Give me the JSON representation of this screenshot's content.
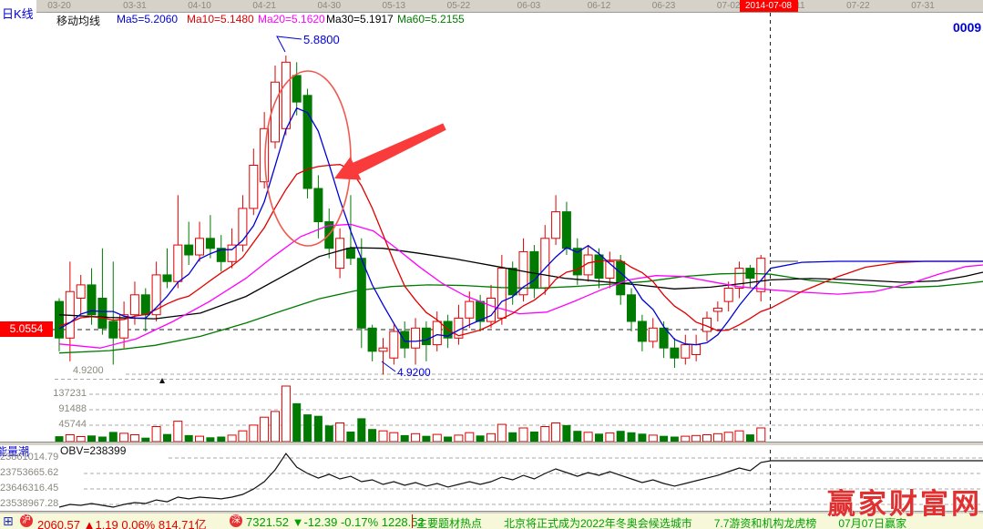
{
  "toolbar": {
    "chart_type": "日K线",
    "ma_title": "移动均线",
    "ma_items": [
      {
        "text": "Ma5=5.2060",
        "color": "#0000D8"
      },
      {
        "text": "Ma10=5.1480",
        "color": "#E00000"
      },
      {
        "text": "Ma20=5.1620",
        "color": "#FF00FF"
      },
      {
        "text": "Ma30=5.1917",
        "color": "#000000"
      },
      {
        "text": "Ma60=5.2155",
        "color": "#007A00"
      }
    ],
    "stock_code": "0009"
  },
  "date_axis": {
    "ticks": [
      {
        "label": "03-20",
        "i": 0
      },
      {
        "label": "03-31",
        "i": 7
      },
      {
        "label": "04-10",
        "i": 13
      },
      {
        "label": "04-21",
        "i": 19
      },
      {
        "label": "04-30",
        "i": 25
      },
      {
        "label": "05-13",
        "i": 31
      },
      {
        "label": "05-22",
        "i": 37
      },
      {
        "label": "06-03",
        "i": 43.5
      },
      {
        "label": "06-12",
        "i": 50
      },
      {
        "label": "06-23",
        "i": 56
      },
      {
        "label": "07-02",
        "i": 62
      },
      {
        "label": "07-22",
        "i": 74
      },
      {
        "label": "07-31",
        "i": 80
      }
    ],
    "highlight": {
      "label": "2014-07-08",
      "i": 65.7,
      "bg": "#FF0000",
      "fg": "#FFFFFF"
    },
    "covered_label": "-11"
  },
  "price_axis": {
    "marker_label": "5.0554",
    "marker_price": 5.0554,
    "low_label": "4.9200",
    "low_price": 4.92
  },
  "annotations": {
    "peak_label": "5.8800",
    "peak_price": 5.88,
    "low_label": "4.9200",
    "ellipse_note": "circle around top reversal",
    "arrow_note": "arrow pointing at MA5 crossing down"
  },
  "volume_axis": [
    "137231",
    "91488",
    "45744"
  ],
  "obv_panel": {
    "name": "能量潮",
    "obv_text": "OBV=238399",
    "axis": [
      "23861014.79",
      "23753665.62",
      "23646316.45",
      "23538967.28"
    ]
  },
  "status_bar": {
    "sh_icon": "沪",
    "sh_text": "2060.57 ▲1.19 0.06% 814.71亿",
    "sz_icon": "深",
    "sz_text": "7321.52 ▼-12.39 -0.17% 1228.52",
    "ticker": "主要题材热点　　北京将正式成为2022年冬奥会候选城市　　7.7游资和机构龙虎榜　　07月07日赢家"
  },
  "watermark": {
    "text": "赢家财富网"
  },
  "colors": {
    "up": "#E00000",
    "down": "#007A00",
    "ma5": "#0000D8",
    "ma10": "#E00000",
    "ma20": "#FF00FF",
    "ma30": "#000000",
    "ma60": "#007A00",
    "ellipse": "#F05A50",
    "arrow": "#FA3B3B",
    "grid_gray": "#AAAAAA",
    "dashed_black": "#222222",
    "status_red": "#E00000",
    "ticker_green": "#00A000",
    "label_blue": "#0000D8",
    "axis_gray": "#8A8880",
    "obv_line": "#111111",
    "pointer_gray": "#A0A0A0"
  },
  "chart_data": {
    "type": "candlestick+volume+obv",
    "title": "日K线 with Ma5/Ma10/Ma20/Ma30/Ma60, volume and OBV panes",
    "ylim_hint": [
      4.92,
      5.88
    ],
    "candles_ohlc": [
      [
        5.14,
        5.15,
        4.99,
        5.03
      ],
      [
        5.03,
        5.26,
        4.96,
        5.17
      ],
      [
        5.15,
        5.22,
        5.1,
        5.19
      ],
      [
        5.19,
        5.24,
        5.07,
        5.1
      ],
      [
        5.15,
        5.3,
        5.04,
        5.06
      ],
      [
        5.08,
        5.26,
        4.95,
        5.03
      ],
      [
        5.03,
        5.14,
        5.0,
        5.1
      ],
      [
        5.1,
        5.2,
        5.07,
        5.16
      ],
      [
        5.16,
        5.18,
        5.05,
        5.1
      ],
      [
        5.1,
        5.26,
        5.08,
        5.22
      ],
      [
        5.22,
        5.3,
        5.18,
        5.2
      ],
      [
        5.2,
        5.46,
        5.18,
        5.31
      ],
      [
        5.31,
        5.38,
        5.25,
        5.28
      ],
      [
        5.28,
        5.38,
        5.26,
        5.33
      ],
      [
        5.33,
        5.4,
        5.27,
        5.3
      ],
      [
        5.3,
        5.34,
        5.23,
        5.26
      ],
      [
        5.26,
        5.36,
        5.24,
        5.31
      ],
      [
        5.31,
        5.46,
        5.29,
        5.42
      ],
      [
        5.42,
        5.6,
        5.4,
        5.55
      ],
      [
        5.5,
        5.71,
        5.48,
        5.66
      ],
      [
        5.62,
        5.85,
        5.6,
        5.8
      ],
      [
        5.66,
        5.88,
        5.64,
        5.86
      ],
      [
        5.82,
        5.86,
        5.7,
        5.74
      ],
      [
        5.76,
        5.78,
        5.45,
        5.48
      ],
      [
        5.48,
        5.52,
        5.33,
        5.38
      ],
      [
        5.38,
        5.42,
        5.27,
        5.3
      ],
      [
        5.24,
        5.36,
        5.21,
        5.33
      ],
      [
        5.3,
        5.46,
        5.25,
        5.27
      ],
      [
        5.27,
        5.33,
        5.0,
        5.06
      ],
      [
        5.06,
        5.07,
        4.96,
        4.99
      ],
      [
        4.99,
        5.03,
        4.92,
        5.0
      ],
      [
        4.97,
        5.07,
        4.95,
        5.05
      ],
      [
        5.05,
        5.08,
        4.97,
        5.0
      ],
      [
        5.0,
        5.09,
        4.95,
        5.06
      ],
      [
        5.06,
        5.08,
        4.96,
        5.01
      ],
      [
        5.01,
        5.11,
        4.99,
        5.08
      ],
      [
        5.08,
        5.1,
        5.0,
        5.03
      ],
      [
        5.03,
        5.13,
        5.01,
        5.09
      ],
      [
        5.09,
        5.17,
        5.06,
        5.14
      ],
      [
        5.14,
        5.16,
        5.05,
        5.08
      ],
      [
        5.08,
        5.19,
        5.06,
        5.15
      ],
      [
        5.09,
        5.28,
        5.07,
        5.24
      ],
      [
        5.24,
        5.26,
        5.13,
        5.16
      ],
      [
        5.16,
        5.33,
        5.14,
        5.29
      ],
      [
        5.29,
        5.31,
        5.15,
        5.18
      ],
      [
        5.18,
        5.37,
        5.16,
        5.33
      ],
      [
        5.33,
        5.46,
        5.31,
        5.41
      ],
      [
        5.41,
        5.44,
        5.28,
        5.3
      ],
      [
        5.3,
        5.33,
        5.19,
        5.22
      ],
      [
        5.22,
        5.31,
        5.2,
        5.28
      ],
      [
        5.28,
        5.3,
        5.18,
        5.21
      ],
      [
        5.21,
        5.29,
        5.18,
        5.26
      ],
      [
        5.26,
        5.28,
        5.13,
        5.16
      ],
      [
        5.16,
        5.18,
        5.05,
        5.08
      ],
      [
        5.08,
        5.1,
        4.99,
        5.02
      ],
      [
        5.02,
        5.09,
        5.0,
        5.06
      ],
      [
        5.06,
        5.08,
        4.97,
        5.0
      ],
      [
        5.0,
        5.03,
        4.94,
        4.97
      ],
      [
        4.97,
        5.04,
        4.95,
        5.01
      ],
      [
        4.98,
        5.04,
        4.96,
        5.01
      ],
      [
        5.05,
        5.11,
        5.02,
        5.09
      ],
      [
        5.11,
        5.14,
        5.08,
        5.12
      ],
      [
        5.14,
        5.2,
        5.11,
        5.18
      ],
      [
        5.18,
        5.26,
        5.15,
        5.24
      ],
      [
        5.24,
        5.25,
        5.18,
        5.21
      ],
      [
        5.17,
        5.28,
        5.14,
        5.27
      ]
    ],
    "volumes": [
      15000,
      19000,
      14000,
      17000,
      14000,
      27000,
      23000,
      19000,
      11000,
      42000,
      21000,
      57000,
      18000,
      15000,
      12000,
      14000,
      18000,
      30000,
      46000,
      68000,
      84000,
      155000,
      107000,
      76000,
      72000,
      45000,
      52000,
      28000,
      65000,
      35000,
      30000,
      25000,
      18000,
      22000,
      16000,
      20000,
      14000,
      18000,
      25000,
      17000,
      22000,
      48000,
      26000,
      38000,
      28000,
      42000,
      52000,
      46000,
      30000,
      26000,
      22000,
      24000,
      30000,
      26000,
      22000,
      18000,
      16000,
      14000,
      15000,
      17000,
      19000,
      22000,
      26000,
      30000,
      20000,
      38000
    ],
    "obv": [
      23533000,
      23551000,
      23545000,
      23557000,
      23545000,
      23533000,
      23551000,
      23563000,
      23557000,
      23581000,
      23569000,
      23600000,
      23588000,
      23600000,
      23594000,
      23588000,
      23600000,
      23618000,
      23654000,
      23703000,
      23782000,
      23891000,
      23800000,
      23758000,
      23727000,
      23752000,
      23721000,
      23739000,
      23703000,
      23715000,
      23685000,
      23703000,
      23679000,
      23697000,
      23673000,
      23691000,
      23667000,
      23685000,
      23703000,
      23685000,
      23703000,
      23733000,
      23715000,
      23745000,
      23721000,
      23758000,
      23788000,
      23764000,
      23739000,
      23764000,
      23745000,
      23770000,
      23745000,
      23721000,
      23697000,
      23715000,
      23691000,
      23673000,
      23691000,
      23709000,
      23727000,
      23745000,
      23770000,
      23794000,
      23776000,
      23831000
    ],
    "obv_extension": [
      [
        846,
        23843000
      ],
      [
        1079,
        23843000
      ]
    ],
    "history_closes": [
      5.02,
      5.0,
      4.98,
      4.96,
      4.95,
      4.97,
      4.99,
      5.01,
      5.0,
      4.98,
      4.96,
      4.94,
      4.92,
      4.93,
      4.95,
      4.97,
      4.96,
      4.94,
      4.95,
      4.97,
      4.99,
      5.01,
      5.03,
      5.02,
      5.0,
      4.98,
      4.97,
      4.99,
      5.01,
      5.03,
      5.05,
      5.04,
      5.02,
      5.0,
      4.99,
      5.01,
      5.03,
      5.05,
      5.06,
      5.04,
      5.02,
      5.01,
      5.03,
      5.05,
      5.07,
      5.06,
      5.04,
      5.03,
      5.05,
      5.07,
      5.08,
      5.06,
      5.05,
      5.07,
      5.09,
      5.1,
      5.08,
      5.06,
      5.05,
      5.07
    ],
    "ma5_extension": [
      [
        846,
        5.24
      ],
      [
        880,
        5.258
      ],
      [
        920,
        5.261
      ],
      [
        1000,
        5.261
      ],
      [
        1079,
        5.261
      ]
    ],
    "ma10_extension": [
      [
        846,
        5.12
      ],
      [
        880,
        5.17
      ],
      [
        920,
        5.215
      ],
      [
        950,
        5.243
      ],
      [
        985,
        5.257
      ],
      [
        1015,
        5.261
      ],
      [
        1079,
        5.261
      ]
    ],
    "ma20_points": [
      [
        65,
        5.012
      ],
      [
        110,
        5.0
      ],
      [
        150,
        5.028
      ],
      [
        190,
        5.08
      ],
      [
        230,
        5.14
      ],
      [
        270,
        5.21
      ],
      [
        300,
        5.275
      ],
      [
        330,
        5.335
      ],
      [
        360,
        5.368
      ],
      [
        385,
        5.372
      ],
      [
        410,
        5.352
      ],
      [
        435,
        5.3
      ],
      [
        460,
        5.245
      ],
      [
        485,
        5.195
      ],
      [
        510,
        5.158
      ],
      [
        540,
        5.126
      ],
      [
        570,
        5.103
      ],
      [
        600,
        5.108
      ],
      [
        630,
        5.14
      ],
      [
        660,
        5.175
      ],
      [
        690,
        5.205
      ],
      [
        720,
        5.218
      ],
      [
        750,
        5.215
      ],
      [
        780,
        5.2
      ],
      [
        810,
        5.185
      ],
      [
        846,
        5.175
      ],
      [
        880,
        5.168
      ],
      [
        920,
        5.162
      ],
      [
        960,
        5.17
      ],
      [
        1000,
        5.195
      ],
      [
        1030,
        5.222
      ],
      [
        1060,
        5.245
      ],
      [
        1079,
        5.25
      ]
    ],
    "ma30_points": [
      [
        65,
        5.1
      ],
      [
        120,
        5.092
      ],
      [
        170,
        5.088
      ],
      [
        220,
        5.105
      ],
      [
        270,
        5.155
      ],
      [
        310,
        5.215
      ],
      [
        350,
        5.275
      ],
      [
        385,
        5.302
      ],
      [
        420,
        5.3
      ],
      [
        460,
        5.285
      ],
      [
        500,
        5.268
      ],
      [
        540,
        5.248
      ],
      [
        580,
        5.228
      ],
      [
        620,
        5.21
      ],
      [
        660,
        5.2
      ],
      [
        700,
        5.19
      ],
      [
        740,
        5.178
      ],
      [
        780,
        5.183
      ],
      [
        815,
        5.194
      ],
      [
        846,
        5.205
      ],
      [
        890,
        5.209
      ],
      [
        940,
        5.205
      ],
      [
        990,
        5.198
      ],
      [
        1030,
        5.202
      ],
      [
        1060,
        5.216
      ],
      [
        1079,
        5.228
      ]
    ],
    "ma60_points": [
      [
        65,
        4.985
      ],
      [
        120,
        4.992
      ],
      [
        170,
        5.008
      ],
      [
        220,
        5.035
      ],
      [
        270,
        5.075
      ],
      [
        310,
        5.112
      ],
      [
        350,
        5.148
      ],
      [
        390,
        5.172
      ],
      [
        430,
        5.185
      ],
      [
        470,
        5.19
      ],
      [
        510,
        5.188
      ],
      [
        550,
        5.182
      ],
      [
        590,
        5.18
      ],
      [
        630,
        5.185
      ],
      [
        670,
        5.192
      ],
      [
        710,
        5.2
      ],
      [
        750,
        5.215
      ],
      [
        790,
        5.223
      ],
      [
        820,
        5.225
      ],
      [
        846,
        5.222
      ],
      [
        890,
        5.203
      ],
      [
        940,
        5.192
      ],
      [
        990,
        5.182
      ],
      [
        1030,
        5.186
      ],
      [
        1060,
        5.194
      ],
      [
        1079,
        5.2
      ]
    ]
  }
}
